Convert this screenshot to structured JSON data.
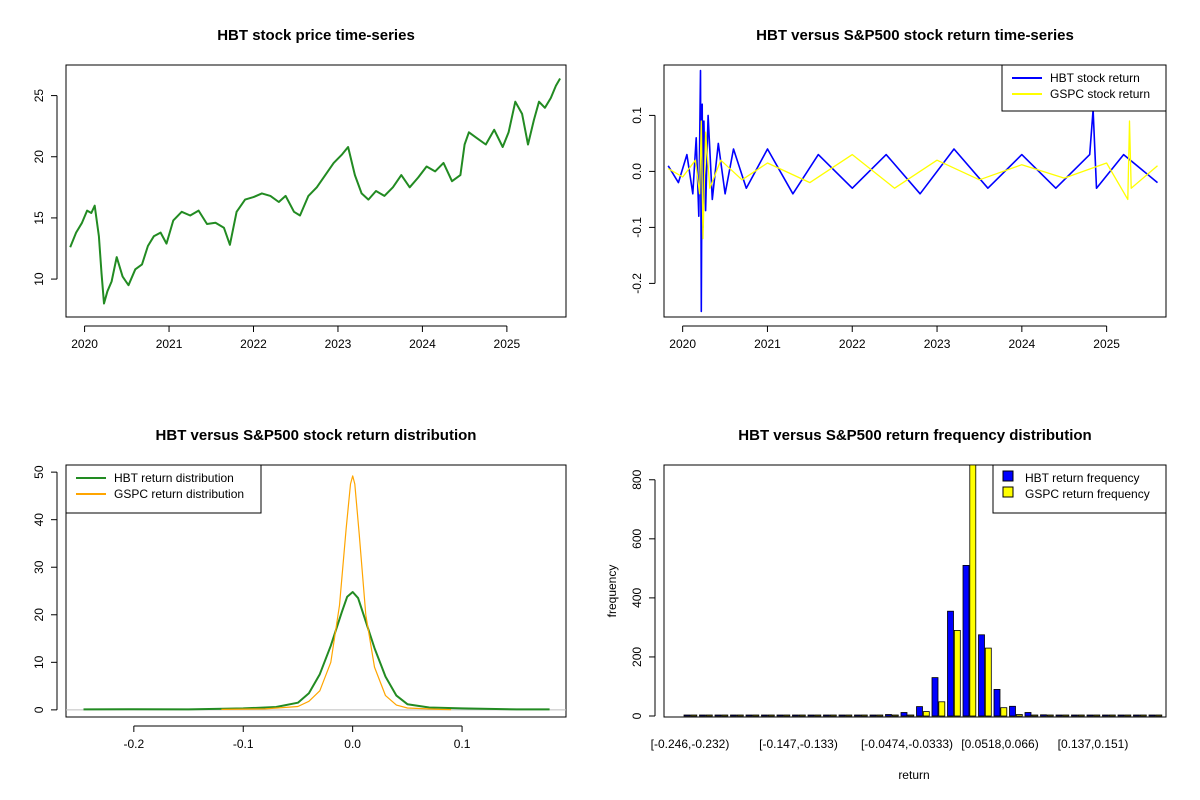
{
  "chart_data": [
    {
      "id": "price",
      "type": "line",
      "title": "HBT stock price time-series",
      "xlim": [
        2019.78,
        2025.7
      ],
      "ylim": [
        6.9,
        27.5
      ],
      "x_ticks": [
        2020,
        2021,
        2022,
        2023,
        2024,
        2025
      ],
      "x_tick_labels": [
        "2020",
        "2021",
        "2022",
        "2023",
        "2024",
        "2025"
      ],
      "y_ticks": [
        10,
        15,
        20,
        25
      ],
      "y_tick_labels": [
        "10",
        "15",
        "20",
        "25"
      ],
      "series": [
        {
          "color": "#228B22",
          "x": [
            2019.83,
            2019.9,
            2019.97,
            2020.03,
            2020.08,
            2020.12,
            2020.17,
            2020.2,
            2020.23,
            2020.27,
            2020.32,
            2020.38,
            2020.45,
            2020.52,
            2020.6,
            2020.68,
            2020.75,
            2020.82,
            2020.9,
            2020.97,
            2021.05,
            2021.15,
            2021.25,
            2021.35,
            2021.45,
            2021.55,
            2021.65,
            2021.72,
            2021.8,
            2021.9,
            2022.0,
            2022.1,
            2022.2,
            2022.3,
            2022.38,
            2022.48,
            2022.55,
            2022.65,
            2022.75,
            2022.85,
            2022.95,
            2023.05,
            2023.12,
            2023.2,
            2023.28,
            2023.36,
            2023.45,
            2023.55,
            2023.65,
            2023.75,
            2023.85,
            2023.95,
            2024.05,
            2024.15,
            2024.25,
            2024.35,
            2024.45,
            2024.5,
            2024.55,
            2024.65,
            2024.75,
            2024.85,
            2024.95,
            2025.02,
            2025.1,
            2025.18,
            2025.25,
            2025.32,
            2025.38,
            2025.45,
            2025.52,
            2025.58,
            2025.63
          ],
          "y": [
            12.6,
            13.8,
            14.6,
            15.6,
            15.4,
            16.0,
            13.5,
            10.5,
            8.0,
            9.0,
            9.8,
            11.8,
            10.2,
            9.5,
            10.8,
            11.2,
            12.7,
            13.5,
            13.8,
            12.9,
            14.8,
            15.5,
            15.2,
            15.6,
            14.5,
            14.6,
            14.2,
            12.8,
            15.5,
            16.5,
            16.7,
            17.0,
            16.8,
            16.3,
            16.8,
            15.5,
            15.2,
            16.8,
            17.5,
            18.5,
            19.5,
            20.2,
            20.8,
            18.5,
            17.0,
            16.5,
            17.2,
            16.8,
            17.5,
            18.5,
            17.5,
            18.3,
            19.2,
            18.8,
            19.5,
            18.0,
            18.5,
            21.0,
            22.0,
            21.5,
            21.0,
            22.2,
            20.8,
            22.0,
            24.5,
            23.5,
            21.0,
            23.0,
            24.5,
            24.0,
            24.8,
            25.8,
            26.4
          ]
        }
      ]
    },
    {
      "id": "returns",
      "type": "line",
      "title": "HBT versus S&P500 stock return time-series",
      "xlim": [
        2019.78,
        2025.7
      ],
      "ylim": [
        -0.26,
        0.19
      ],
      "x_ticks": [
        2020,
        2021,
        2022,
        2023,
        2024,
        2025
      ],
      "x_tick_labels": [
        "2020",
        "2021",
        "2022",
        "2023",
        "2024",
        "2025"
      ],
      "y_ticks": [
        -0.2,
        -0.1,
        0.0,
        0.1
      ],
      "y_tick_labels": [
        "-0.2",
        "-0.1",
        "0.0",
        "0.1"
      ],
      "legend": {
        "position": "top-right",
        "labels": [
          "HBT stock return",
          "GSPC stock return"
        ]
      },
      "series": [
        {
          "name": "HBT stock return",
          "color": "#0000FF",
          "x": [
            2019.83,
            2019.95,
            2020.05,
            2020.12,
            2020.16,
            2020.19,
            2020.21,
            2020.22,
            2020.23,
            2020.24,
            2020.25,
            2020.27,
            2020.3,
            2020.35,
            2020.42,
            2020.5,
            2020.6,
            2020.75,
            2021.0,
            2021.3,
            2021.6,
            2022.0,
            2022.4,
            2022.8,
            2023.2,
            2023.6,
            2024.0,
            2024.4,
            2024.8,
            2024.84,
            2024.88,
            2025.2,
            2025.6
          ],
          "y": [
            0.01,
            -0.02,
            0.03,
            -0.04,
            0.06,
            -0.08,
            0.18,
            -0.25,
            0.12,
            -0.1,
            0.09,
            -0.07,
            0.1,
            -0.05,
            0.05,
            -0.04,
            0.04,
            -0.03,
            0.04,
            -0.04,
            0.03,
            -0.03,
            0.03,
            -0.04,
            0.04,
            -0.03,
            0.03,
            -0.03,
            0.03,
            0.11,
            -0.03,
            0.03,
            -0.02
          ]
        },
        {
          "name": "GSPC stock return",
          "color": "#FFFF00",
          "x": [
            2019.83,
            2020.0,
            2020.15,
            2020.2,
            2020.22,
            2020.24,
            2020.27,
            2020.32,
            2020.45,
            2020.7,
            2021.0,
            2021.5,
            2022.0,
            2022.5,
            2023.0,
            2023.5,
            2024.0,
            2024.5,
            2025.0,
            2025.25,
            2025.27,
            2025.29,
            2025.6
          ],
          "y": [
            0.005,
            -0.01,
            0.02,
            -0.04,
            0.09,
            -0.12,
            0.07,
            -0.03,
            0.02,
            -0.015,
            0.015,
            -0.02,
            0.03,
            -0.03,
            0.02,
            -0.015,
            0.012,
            -0.012,
            0.015,
            -0.05,
            0.09,
            -0.03,
            0.01
          ]
        }
      ]
    },
    {
      "id": "density",
      "type": "line",
      "title": "HBT versus S&P500 stock return distribution",
      "xlim": [
        -0.262,
        0.195
      ],
      "ylim": [
        -1.5,
        51.5
      ],
      "x_ticks": [
        -0.2,
        -0.1,
        0.0,
        0.1
      ],
      "x_tick_labels": [
        "-0.2",
        "-0.1",
        "0.0",
        "0.1"
      ],
      "y_ticks": [
        0,
        10,
        20,
        30,
        40,
        50
      ],
      "y_tick_labels": [
        "0",
        "10",
        "20",
        "30",
        "40",
        "50"
      ],
      "legend": {
        "position": "top-left",
        "labels": [
          "HBT return distribution",
          "GSPC return distribution"
        ]
      },
      "series": [
        {
          "name": "HBT return distribution",
          "color": "#228B22",
          "x": [
            -0.246,
            -0.2,
            -0.15,
            -0.1,
            -0.07,
            -0.05,
            -0.04,
            -0.03,
            -0.02,
            -0.01,
            -0.005,
            0.0,
            0.005,
            0.01,
            0.02,
            0.03,
            0.04,
            0.05,
            0.07,
            0.1,
            0.15,
            0.18
          ],
          "y": [
            0.1,
            0.15,
            0.1,
            0.3,
            0.6,
            1.5,
            3.5,
            7.5,
            13.5,
            20.5,
            23.8,
            24.8,
            23.5,
            20.0,
            13.0,
            7.0,
            3.0,
            1.2,
            0.5,
            0.3,
            0.1,
            0.1
          ]
        },
        {
          "name": "GSPC return distribution",
          "color": "#FFA500",
          "x": [
            -0.12,
            -0.08,
            -0.05,
            -0.04,
            -0.03,
            -0.02,
            -0.012,
            -0.006,
            -0.002,
            0.0,
            0.002,
            0.006,
            0.012,
            0.02,
            0.03,
            0.04,
            0.05,
            0.08,
            0.09
          ],
          "y": [
            0.1,
            0.2,
            0.7,
            1.8,
            4.0,
            10.0,
            22.0,
            38.0,
            47.5,
            49.2,
            47.5,
            37.0,
            20.0,
            9.0,
            3.0,
            1.0,
            0.4,
            0.1,
            0.05
          ]
        }
      ]
    },
    {
      "id": "histogram",
      "type": "bar",
      "title": "HBT versus S&P500 return frequency distribution",
      "xlabel": "return",
      "ylabel": "frequency",
      "ylim": [
        0,
        850
      ],
      "y_ticks": [
        0,
        200,
        400,
        600,
        800
      ],
      "y_tick_labels": [
        "0",
        "200",
        "400",
        "600",
        "800"
      ],
      "x_tick_labels": [
        "[-0.246,-0.232)",
        "[-0.147,-0.133)",
        "[-0.0474,-0.0333)",
        "[0.0518,0.066)",
        "[0.137,0.151)"
      ],
      "x_tick_bins": [
        0,
        7,
        14,
        20,
        26
      ],
      "legend": {
        "position": "top-right",
        "labels": [
          "HBT return frequency",
          "GSPC return frequency"
        ]
      },
      "series": [
        {
          "name": "HBT return frequency",
          "color": "#0000FF",
          "values": [
            1,
            0,
            0,
            0,
            0,
            0,
            0,
            1,
            0,
            1,
            1,
            1,
            2,
            5,
            12,
            32,
            130,
            355,
            510,
            275,
            90,
            33,
            12,
            4,
            2,
            2,
            1,
            1,
            1,
            0,
            0
          ]
        },
        {
          "name": "GSPC return frequency",
          "color": "#FFFF00",
          "values": [
            0,
            0,
            0,
            0,
            0,
            0,
            0,
            0,
            0,
            0,
            0,
            0,
            0,
            1,
            3,
            15,
            48,
            290,
            850,
            230,
            28,
            5,
            1,
            0,
            0,
            0,
            1,
            0,
            0,
            0,
            0
          ]
        }
      ]
    }
  ]
}
